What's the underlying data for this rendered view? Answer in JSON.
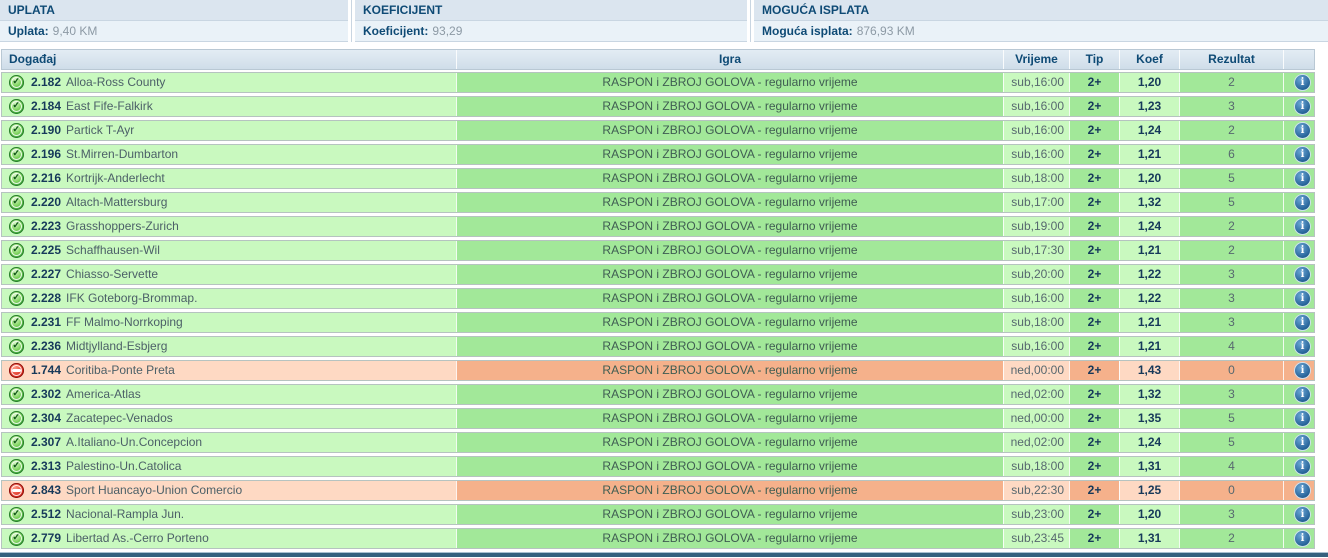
{
  "summary": {
    "columns": [
      {
        "header": "UPLATA",
        "label": "Uplata:",
        "value": "9,40 KM"
      },
      {
        "header": "KOEFICIJENT",
        "label": "Koeficijent:",
        "value": "93,29"
      },
      {
        "header": "MOGUĆA ISPLATA",
        "label": "Moguća isplata:",
        "value": "876,93 KM"
      }
    ]
  },
  "table": {
    "headers": {
      "event": "Događaj",
      "game": "Igra",
      "time": "Vrijeme",
      "tip": "Tip",
      "koef": "Koef",
      "result": "Rezultat"
    },
    "rows": [
      {
        "status": "win",
        "code": "2.182",
        "teams": "Alloa-Ross County",
        "game": "RASPON i ZBROJ GOLOVA - regularno vrijeme",
        "time": "sub,16:00",
        "tip": "2+",
        "koef": "1,20",
        "result": "2"
      },
      {
        "status": "win",
        "code": "2.184",
        "teams": "East Fife-Falkirk",
        "game": "RASPON i ZBROJ GOLOVA - regularno vrijeme",
        "time": "sub,16:00",
        "tip": "2+",
        "koef": "1,23",
        "result": "3"
      },
      {
        "status": "win",
        "code": "2.190",
        "teams": "Partick T-Ayr",
        "game": "RASPON i ZBROJ GOLOVA - regularno vrijeme",
        "time": "sub,16:00",
        "tip": "2+",
        "koef": "1,24",
        "result": "2"
      },
      {
        "status": "win",
        "code": "2.196",
        "teams": "St.Mirren-Dumbarton",
        "game": "RASPON i ZBROJ GOLOVA - regularno vrijeme",
        "time": "sub,16:00",
        "tip": "2+",
        "koef": "1,21",
        "result": "6"
      },
      {
        "status": "win",
        "code": "2.216",
        "teams": "Kortrijk-Anderlecht",
        "game": "RASPON i ZBROJ GOLOVA - regularno vrijeme",
        "time": "sub,18:00",
        "tip": "2+",
        "koef": "1,20",
        "result": "5"
      },
      {
        "status": "win",
        "code": "2.220",
        "teams": "Altach-Mattersburg",
        "game": "RASPON i ZBROJ GOLOVA - regularno vrijeme",
        "time": "sub,17:00",
        "tip": "2+",
        "koef": "1,32",
        "result": "5"
      },
      {
        "status": "win",
        "code": "2.223",
        "teams": "Grasshoppers-Zurich",
        "game": "RASPON i ZBROJ GOLOVA - regularno vrijeme",
        "time": "sub,19:00",
        "tip": "2+",
        "koef": "1,24",
        "result": "2"
      },
      {
        "status": "win",
        "code": "2.225",
        "teams": "Schaffhausen-Wil",
        "game": "RASPON i ZBROJ GOLOVA - regularno vrijeme",
        "time": "sub,17:30",
        "tip": "2+",
        "koef": "1,21",
        "result": "2"
      },
      {
        "status": "win",
        "code": "2.227",
        "teams": "Chiasso-Servette",
        "game": "RASPON i ZBROJ GOLOVA - regularno vrijeme",
        "time": "sub,20:00",
        "tip": "2+",
        "koef": "1,22",
        "result": "3"
      },
      {
        "status": "win",
        "code": "2.228",
        "teams": "IFK Goteborg-Brommap.",
        "game": "RASPON i ZBROJ GOLOVA - regularno vrijeme",
        "time": "sub,16:00",
        "tip": "2+",
        "koef": "1,22",
        "result": "3"
      },
      {
        "status": "win",
        "code": "2.231",
        "teams": "FF Malmo-Norrkoping",
        "game": "RASPON i ZBROJ GOLOVA - regularno vrijeme",
        "time": "sub,18:00",
        "tip": "2+",
        "koef": "1,21",
        "result": "3"
      },
      {
        "status": "win",
        "code": "2.236",
        "teams": "Midtjylland-Esbjerg",
        "game": "RASPON i ZBROJ GOLOVA - regularno vrijeme",
        "time": "sub,16:00",
        "tip": "2+",
        "koef": "1,21",
        "result": "4"
      },
      {
        "status": "lose",
        "code": "1.744",
        "teams": "Coritiba-Ponte Preta",
        "game": "RASPON i ZBROJ GOLOVA - regularno vrijeme",
        "time": "ned,00:00",
        "tip": "2+",
        "koef": "1,43",
        "result": "0"
      },
      {
        "status": "win",
        "code": "2.302",
        "teams": "America-Atlas",
        "game": "RASPON i ZBROJ GOLOVA - regularno vrijeme",
        "time": "ned,02:00",
        "tip": "2+",
        "koef": "1,32",
        "result": "3"
      },
      {
        "status": "win",
        "code": "2.304",
        "teams": "Zacatepec-Venados",
        "game": "RASPON i ZBROJ GOLOVA - regularno vrijeme",
        "time": "ned,00:00",
        "tip": "2+",
        "koef": "1,35",
        "result": "5"
      },
      {
        "status": "win",
        "code": "2.307",
        "teams": "A.Italiano-Un.Concepcion",
        "game": "RASPON i ZBROJ GOLOVA - regularno vrijeme",
        "time": "ned,02:00",
        "tip": "2+",
        "koef": "1,24",
        "result": "5"
      },
      {
        "status": "win",
        "code": "2.313",
        "teams": "Palestino-Un.Catolica",
        "game": "RASPON i ZBROJ GOLOVA - regularno vrijeme",
        "time": "sub,18:00",
        "tip": "2+",
        "koef": "1,31",
        "result": "4"
      },
      {
        "status": "lose",
        "code": "2.843",
        "teams": "Sport Huancayo-Union Comercio",
        "game": "RASPON i ZBROJ GOLOVA - regularno vrijeme",
        "time": "sub,22:30",
        "tip": "2+",
        "koef": "1,25",
        "result": "0"
      },
      {
        "status": "win",
        "code": "2.512",
        "teams": "Nacional-Rampla Jun.",
        "game": "RASPON i ZBROJ GOLOVA - regularno vrijeme",
        "time": "sub,23:00",
        "tip": "2+",
        "koef": "1,20",
        "result": "3"
      },
      {
        "status": "win",
        "code": "2.779",
        "teams": "Libertad As.-Cerro Porteno",
        "game": "RASPON i ZBROJ GOLOVA - regularno vrijeme",
        "time": "sub,23:45",
        "tip": "2+",
        "koef": "1,31",
        "result": "2"
      }
    ]
  },
  "icons": {
    "win_glyph": "✓",
    "info_glyph": "i"
  },
  "colors": {
    "accent_navy": "#0e4a75",
    "strong_text": "#16395a",
    "row_text": "#4c6068",
    "game_text": "#3f5d52",
    "time_text": "#57686f",
    "muted_text": "#8d9aa5",
    "summary_header_bg": "#dbe5ef",
    "summary_value_bg": "#eaf2f8",
    "table_header_top": "#e3ecf4",
    "table_header_bg": "#cfdde9",
    "table_border": "#b9c8d4",
    "row_border": "#b6c3c0",
    "sep_line": "#c9d6e2",
    "win_light": "#c9f9bf",
    "win_dark": "#a2e899",
    "lose_light": "#fed9c3",
    "lose_dark": "#f5b18b",
    "bottom_bar": "#35617e"
  }
}
